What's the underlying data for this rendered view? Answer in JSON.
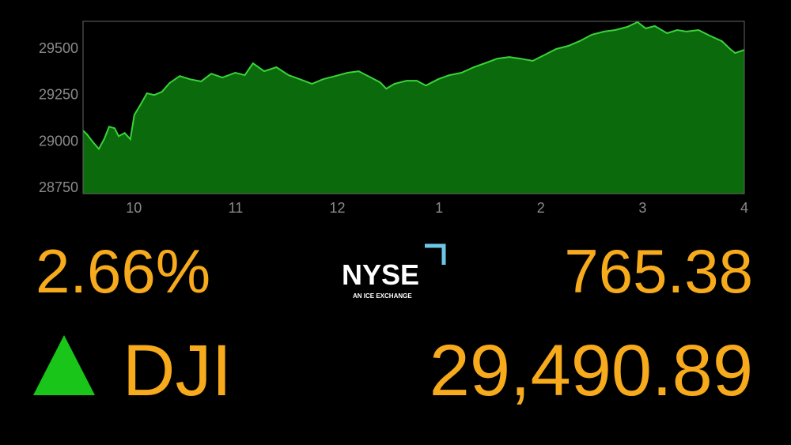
{
  "chart_data": {
    "type": "area",
    "x": [
      9.5,
      9.54,
      9.6,
      9.655,
      9.71,
      9.756,
      9.81,
      9.85,
      9.91,
      9.965,
      10.004,
      10.066,
      10.128,
      10.2,
      10.275,
      10.35,
      10.45,
      10.55,
      10.66,
      10.76,
      10.87,
      10.996,
      11.09,
      11.17,
      11.28,
      11.4,
      11.52,
      11.63,
      11.75,
      11.86,
      11.98,
      12.1,
      12.21,
      12.33,
      12.42,
      12.48,
      12.56,
      12.68,
      12.78,
      12.87,
      12.99,
      13.1,
      13.22,
      13.34,
      13.45,
      13.57,
      13.69,
      13.8,
      13.92,
      14.03,
      14.15,
      14.27,
      14.38,
      14.5,
      14.62,
      14.73,
      14.85,
      14.95,
      15.03,
      15.12,
      15.24,
      15.34,
      15.43,
      15.55,
      15.66,
      15.78,
      15.86,
      15.91,
      16.0
    ],
    "y": [
      29056,
      29035,
      28992,
      28957,
      29013,
      29077,
      29069,
      29026,
      29043,
      29009,
      29141,
      29197,
      29257,
      29248,
      29265,
      29312,
      29350,
      29333,
      29321,
      29363,
      29342,
      29368,
      29355,
      29419,
      29376,
      29398,
      29355,
      29333,
      29308,
      29333,
      29350,
      29368,
      29376,
      29342,
      29316,
      29282,
      29308,
      29325,
      29325,
      29299,
      29333,
      29355,
      29368,
      29398,
      29419,
      29444,
      29453,
      29444,
      29432,
      29462,
      29496,
      29513,
      29538,
      29573,
      29590,
      29598,
      29615,
      29641,
      29607,
      29620,
      29581,
      29598,
      29590,
      29598,
      29568,
      29538,
      29496,
      29474,
      29491
    ],
    "color": "#0b6a0b",
    "line_color": "#3ad33a",
    "xlim": [
      9.5,
      16
    ],
    "xticks": [
      10,
      11,
      12,
      {
        "value": 13,
        "label": "1"
      },
      {
        "value": 14,
        "label": "2"
      },
      {
        "value": 15,
        "label": "3"
      },
      {
        "value": 16,
        "label": "4"
      }
    ],
    "ylim": [
      28716,
      29645
    ],
    "yticks": [
      28750,
      29000,
      29250,
      29500
    ],
    "grid": false
  },
  "ticker": {
    "percent_change": "2.66%",
    "symbol": "DJI",
    "point_change": "765.38",
    "price": "29,490.89",
    "logo": {
      "name": "NYSE",
      "tagline": "AN ICE EXCHANGE"
    }
  }
}
